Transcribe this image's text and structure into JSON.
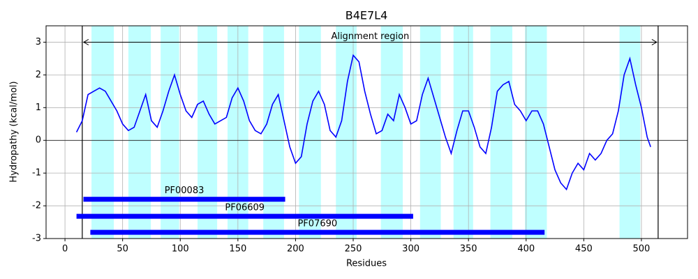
{
  "chart_data": {
    "type": "line",
    "title": "B4E7L4",
    "x_label": "Residues",
    "y_label": "Hydropathy (kcal/mol)",
    "xlim": [
      -16.4,
      540
    ],
    "ylim": [
      -3,
      3.5
    ],
    "xticks": [
      0,
      50,
      100,
      150,
      200,
      250,
      300,
      350,
      400,
      450,
      500
    ],
    "yticks": [
      -3,
      -2,
      -1,
      0,
      1,
      2,
      3
    ],
    "grid": true,
    "x": [
      10,
      15,
      20,
      25,
      30,
      35,
      40,
      45,
      50,
      55,
      60,
      65,
      70,
      75,
      80,
      85,
      90,
      95,
      100,
      105,
      110,
      115,
      120,
      125,
      130,
      135,
      140,
      145,
      150,
      155,
      160,
      165,
      170,
      175,
      180,
      185,
      190,
      195,
      200,
      205,
      210,
      215,
      220,
      225,
      230,
      235,
      240,
      245,
      250,
      255,
      260,
      265,
      270,
      275,
      280,
      285,
      290,
      295,
      300,
      305,
      310,
      315,
      320,
      325,
      330,
      335,
      340,
      345,
      350,
      355,
      360,
      365,
      370,
      375,
      380,
      385,
      390,
      395,
      400,
      405,
      410,
      415,
      420,
      425,
      430,
      435,
      440,
      445,
      450,
      455,
      460,
      465,
      470,
      475,
      480,
      485,
      490,
      495,
      500,
      505,
      508
    ],
    "series": [
      {
        "color": "#0000ff",
        "values": [
          0.25,
          0.6,
          1.4,
          1.5,
          1.6,
          1.5,
          1.2,
          0.9,
          0.5,
          0.3,
          0.4,
          0.9,
          1.4,
          0.6,
          0.4,
          0.9,
          1.5,
          2.0,
          1.4,
          0.9,
          0.7,
          1.1,
          1.2,
          0.8,
          0.5,
          0.6,
          0.7,
          1.3,
          1.6,
          1.2,
          0.6,
          0.3,
          0.2,
          0.5,
          1.1,
          1.4,
          0.6,
          -0.2,
          -0.7,
          -0.5,
          0.5,
          1.2,
          1.5,
          1.1,
          0.3,
          0.1,
          0.6,
          1.8,
          2.6,
          2.4,
          1.5,
          0.8,
          0.2,
          0.3,
          0.8,
          0.6,
          1.4,
          1.0,
          0.5,
          0.6,
          1.4,
          1.9,
          1.3,
          0.7,
          0.1,
          -0.4,
          0.3,
          0.9,
          0.9,
          0.4,
          -0.2,
          -0.4,
          0.4,
          1.5,
          1.7,
          1.8,
          1.1,
          0.9,
          0.6,
          0.9,
          0.9,
          0.5,
          -0.2,
          -0.9,
          -1.3,
          -1.5,
          -1.0,
          -0.7,
          -0.9,
          -0.4,
          -0.6,
          -0.4,
          0.0,
          0.2,
          0.9,
          2.0,
          2.5,
          1.7,
          1.0,
          0.1,
          -0.2
        ]
      }
    ],
    "shaded_regions": [
      [
        23,
        42.4
      ],
      [
        55,
        74.5
      ],
      [
        83,
        99
      ],
      [
        115,
        132
      ],
      [
        141,
        159
      ],
      [
        172,
        190
      ],
      [
        203,
        222
      ],
      [
        235,
        253
      ],
      [
        274,
        293
      ],
      [
        308,
        326
      ],
      [
        337,
        354
      ],
      [
        369,
        388
      ],
      [
        399,
        418
      ],
      [
        481,
        499
      ]
    ],
    "shade_color": "#bfffff",
    "vertical_lines": [
      15,
      514.5
    ],
    "annotation": {
      "text": "Alignment region",
      "start": 15,
      "end": 514.5,
      "y": 3
    },
    "domains": [
      {
        "label": "PF00083",
        "start": 16,
        "end": 191,
        "y": -1.8,
        "color": "#0000ff"
      },
      {
        "label": "PF06609",
        "start": 10,
        "end": 302,
        "y": -2.32,
        "color": "#0000ff"
      },
      {
        "label": "PF07690",
        "start": 22,
        "end": 416,
        "y": -2.81,
        "color": "#0000ff"
      }
    ]
  }
}
